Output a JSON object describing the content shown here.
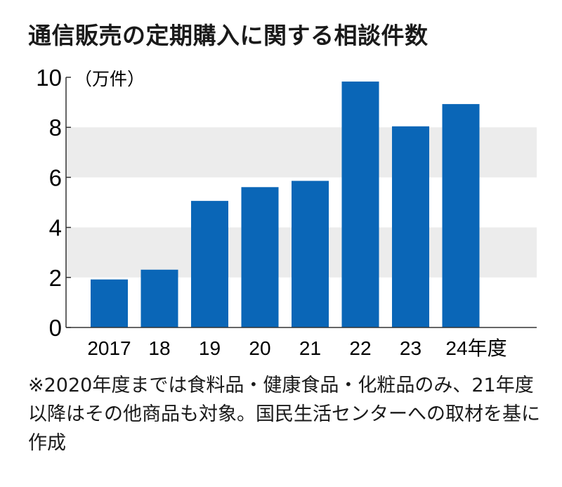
{
  "chart_data": {
    "type": "bar",
    "title": "通信販売の定期購入に関する相談件数",
    "unit_label": "（万件）",
    "categories": [
      "2017",
      "18",
      "19",
      "20",
      "21",
      "22",
      "23",
      "24年度"
    ],
    "values": [
      1.92,
      2.31,
      5.06,
      5.61,
      5.86,
      9.83,
      8.04,
      8.93
    ],
    "ylim": [
      0,
      10
    ],
    "yticks": [
      "0",
      "2",
      "4",
      "6",
      "8",
      "10"
    ],
    "grid": "alternating gray bands (2–4, 6–8)",
    "legend": "none",
    "colors": {
      "bar": "#0a66b7",
      "band": "#ececec",
      "axis": "#333333"
    }
  },
  "footnote": "※2020年度までは食料品・健康食品・化粧品のみ、21年度以降はその他商品も対象。国民生活センターへの取材を基に作成"
}
